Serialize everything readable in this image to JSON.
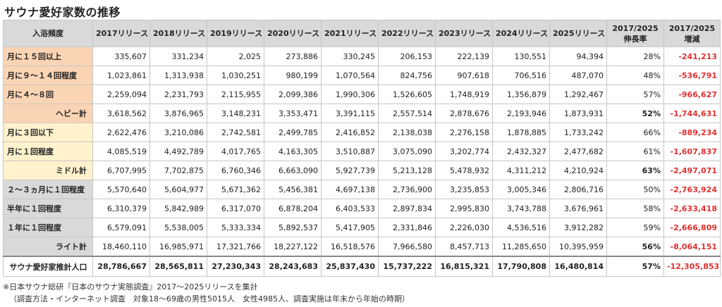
{
  "title": "サウナ愛好家数の推移",
  "headers": {
    "category": "入浴頻度",
    "years": [
      "2017リリース",
      "2018リリース",
      "2019リリース",
      "2020リリース",
      "2021リリース",
      "2022リリース",
      "2023リリース",
      "2024リリース",
      "2025リリース"
    ],
    "rate_line1": "2017/2025",
    "rate_line2": "伸長率",
    "diff_line1": "2017/2025",
    "diff_line2": "増減"
  },
  "rows": [
    {
      "label": "月に１５回以上",
      "group": "heavy",
      "subtotal": false,
      "values": [
        "335,607",
        "331,234",
        "2,025",
        "273,886",
        "330,245",
        "206,153",
        "222,139",
        "130,551",
        "94,394"
      ],
      "rate": "28%",
      "diff": "-241,213"
    },
    {
      "label": "月に９～１４回程度",
      "group": "heavy",
      "subtotal": false,
      "values": [
        "1,023,861",
        "1,313,938",
        "1,030,251",
        "980,199",
        "1,070,564",
        "824,756",
        "907,618",
        "706,516",
        "487,070"
      ],
      "rate": "48%",
      "diff": "-536,791"
    },
    {
      "label": "月に４～８回",
      "group": "heavy",
      "subtotal": false,
      "values": [
        "2,259,094",
        "2,231,793",
        "2,115,955",
        "2,099,386",
        "1,990,306",
        "1,526,605",
        "1,748,919",
        "1,356,879",
        "1,292,467"
      ],
      "rate": "57%",
      "diff": "-966,627"
    },
    {
      "label": "ヘビー計",
      "group": "heavy",
      "subtotal": true,
      "values": [
        "3,618,562",
        "3,876,965",
        "3,148,231",
        "3,353,471",
        "3,391,115",
        "2,557,514",
        "2,878,676",
        "2,193,946",
        "1,873,931"
      ],
      "rate": "52%",
      "diff": "-1,744,631"
    },
    {
      "label": "月に３回以下",
      "group": "mid",
      "subtotal": false,
      "values": [
        "2,622,476",
        "3,210,086",
        "2,742,581",
        "2,499,785",
        "2,416,852",
        "2,138,038",
        "2,276,158",
        "1,878,885",
        "1,733,242"
      ],
      "rate": "66%",
      "diff": "-889,234"
    },
    {
      "label": "月に１回程度",
      "group": "mid",
      "subtotal": false,
      "values": [
        "4,085,519",
        "4,492,789",
        "4,017,765",
        "4,163,305",
        "3,510,887",
        "3,075,090",
        "3,202,774",
        "2,432,327",
        "2,477,682"
      ],
      "rate": "61%",
      "diff": "-1,607,837"
    },
    {
      "label": "ミドル計",
      "group": "mid",
      "subtotal": true,
      "values": [
        "6,707,995",
        "7,702,875",
        "6,760,346",
        "6,663,090",
        "5,927,739",
        "5,213,128",
        "5,478,932",
        "4,311,212",
        "4,210,924"
      ],
      "rate": "63%",
      "diff": "-2,497,071"
    },
    {
      "label": "２～３ヵ月に１回程度",
      "group": "light",
      "subtotal": false,
      "values": [
        "5,570,640",
        "5,604,977",
        "5,671,362",
        "5,456,381",
        "4,697,138",
        "2,736,900",
        "3,235,853",
        "3,005,346",
        "2,806,716"
      ],
      "rate": "50%",
      "diff": "-2,763,924"
    },
    {
      "label": "半年に１回程度",
      "group": "light",
      "subtotal": false,
      "values": [
        "6,310,379",
        "5,842,989",
        "6,317,070",
        "6,878,204",
        "6,403,533",
        "2,897,834",
        "2,995,830",
        "3,743,788",
        "3,676,961"
      ],
      "rate": "58%",
      "diff": "-2,633,418"
    },
    {
      "label": "１年に１回程度",
      "group": "light",
      "subtotal": false,
      "values": [
        "6,579,091",
        "5,538,005",
        "5,333,334",
        "5,892,537",
        "5,417,905",
        "2,331,846",
        "2,226,030",
        "4,536,516",
        "3,912,282"
      ],
      "rate": "59%",
      "diff": "-2,666,809"
    },
    {
      "label": "ライト計",
      "group": "light",
      "subtotal": true,
      "values": [
        "18,460,110",
        "16,985,971",
        "17,321,766",
        "18,227,122",
        "16,518,576",
        "7,966,580",
        "8,457,713",
        "11,285,650",
        "10,395,959"
      ],
      "rate": "56%",
      "diff": "-8,064,151"
    }
  ],
  "total": {
    "label": "サウナ愛好家推計人口",
    "values": [
      "28,786,667",
      "28,565,811",
      "27,230,343",
      "28,243,683",
      "25,837,430",
      "15,737,222",
      "16,815,321",
      "17,790,808",
      "16,480,814"
    ],
    "rate": "57%",
    "diff": "-12,305,853"
  },
  "notes": [
    "※日本サウナ総研『日本のサウナ実態調査』2017～2025リリースを集計",
    "（調査方法・インターネット調査　対象18～69歳の男性5015人　女性4985人、調査実施は年末から年始の時期）"
  ]
}
